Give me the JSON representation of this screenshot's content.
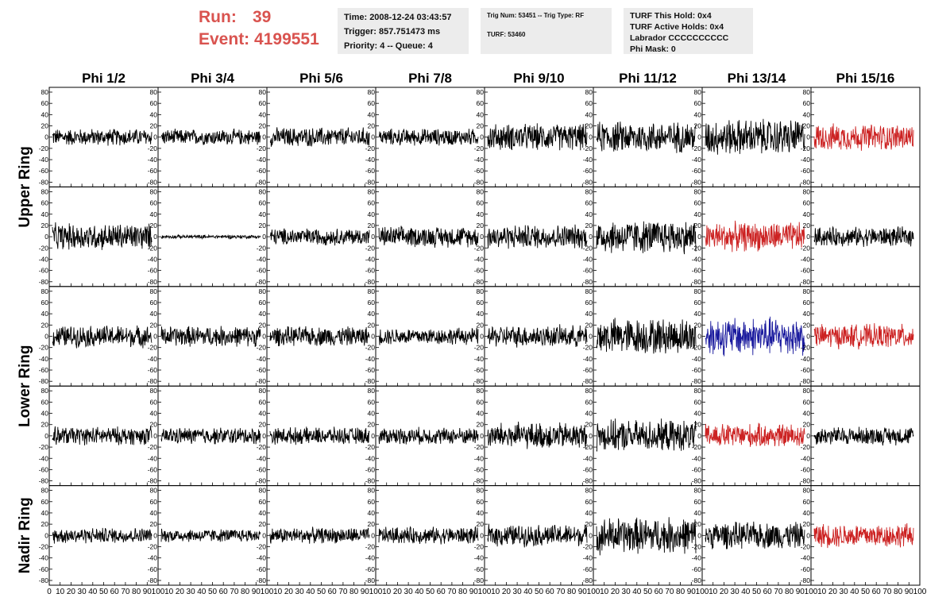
{
  "header": {
    "run_label": "Run:",
    "run_value": "39",
    "event_label": "Event:",
    "event_value": "4199551"
  },
  "info1": {
    "time": "Time: 2008-12-24 03:43:57",
    "trigger": "Trigger: 857.751473 ms",
    "priority": "Priority: 4 -- Queue: 4"
  },
  "info2": {
    "trig": "Trig Num: 53451 -- Trig Type: RF",
    "turf": "TURF: 53460"
  },
  "info3": {
    "hold": "TURF This Hold: 0x4",
    "active": "TURF Active Holds: 0x4",
    "labrador": "Labrador CCCCCCCCCC",
    "mask": "Phi Mask: 0"
  },
  "colors": {
    "normal": "#000000",
    "red": "#cc2222",
    "blue": "#1a1a9e",
    "header": "#d9534f"
  },
  "chart_data": {
    "type": "line",
    "columns": [
      "Phi 1/2",
      "Phi 3/4",
      "Phi 5/6",
      "Phi 7/8",
      "Phi 9/10",
      "Phi 11/12",
      "Phi 13/14",
      "Phi 15/16"
    ],
    "ring_labels": [
      "Upper Ring",
      "Lower Ring",
      "Nadir Ring"
    ],
    "rows": 5,
    "ylim": [
      -80,
      80
    ],
    "yticks": [
      "80",
      "60",
      "40",
      "20",
      "0",
      "-20",
      "-40",
      "-60",
      "-80"
    ],
    "xlim": [
      0,
      100
    ],
    "xticks": [
      "0",
      "10",
      "20",
      "30",
      "40",
      "50",
      "60",
      "70",
      "80",
      "90",
      "100"
    ],
    "amplitudes": [
      [
        14,
        13,
        16,
        14,
        22,
        26,
        30,
        22
      ],
      [
        22,
        3,
        14,
        17,
        20,
        28,
        24,
        16
      ],
      [
        18,
        17,
        16,
        14,
        18,
        30,
        32,
        20
      ],
      [
        15,
        14,
        14,
        14,
        22,
        26,
        20,
        15
      ],
      [
        13,
        11,
        13,
        14,
        18,
        30,
        22,
        20
      ]
    ],
    "trace_colors": [
      [
        "normal",
        "normal",
        "normal",
        "normal",
        "normal",
        "normal",
        "normal",
        "red"
      ],
      [
        "normal",
        "normal",
        "normal",
        "normal",
        "normal",
        "normal",
        "red",
        "normal"
      ],
      [
        "normal",
        "normal",
        "normal",
        "normal",
        "normal",
        "normal",
        "blue",
        "red"
      ],
      [
        "normal",
        "normal",
        "normal",
        "normal",
        "normal",
        "normal",
        "red",
        "normal"
      ],
      [
        "normal",
        "normal",
        "normal",
        "normal",
        "normal",
        "normal",
        "normal",
        "red"
      ]
    ],
    "samples_per_trace": 260
  }
}
